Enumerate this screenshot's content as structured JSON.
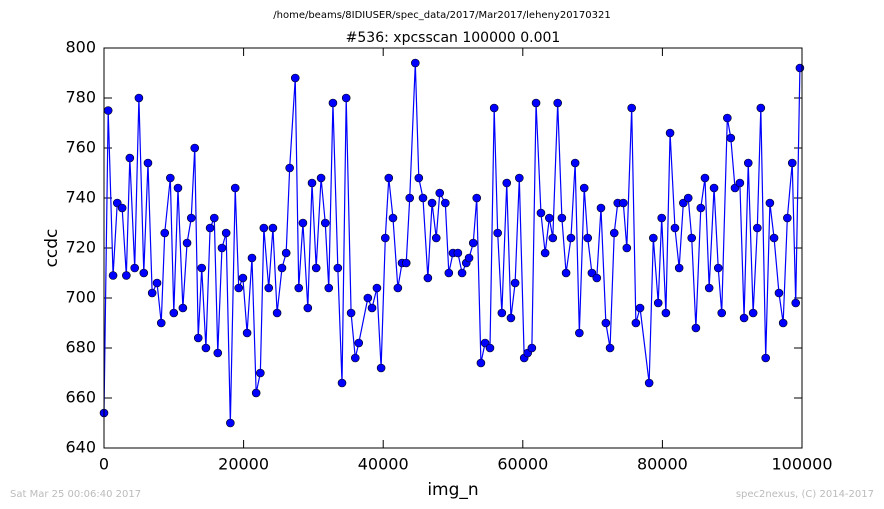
{
  "header": {
    "path": "/home/beams/8IDIUSER/spec_data/2017/Mar2017/leheny20170321"
  },
  "chart_data": {
    "type": "line",
    "title": "#536: xpcsscan 100000 0.001",
    "x_label": "img_n",
    "y_label": "ccdc",
    "color": "#0000ff",
    "marker": true,
    "grid": false,
    "xlim": [
      0,
      100000
    ],
    "xticks": [
      0,
      20000,
      40000,
      60000,
      80000,
      100000
    ],
    "ylim": [
      640,
      800
    ],
    "yticks": [
      640,
      660,
      680,
      700,
      720,
      740,
      760,
      780,
      800
    ],
    "x": [
      0,
      600,
      1300,
      1900,
      2600,
      3200,
      3700,
      4400,
      5000,
      5700,
      6300,
      6900,
      7600,
      8200,
      8700,
      9500,
      10000,
      10600,
      11300,
      11900,
      12500,
      13000,
      13500,
      14000,
      14600,
      15200,
      15800,
      16300,
      16900,
      17500,
      18100,
      18800,
      19300,
      19900,
      20500,
      21200,
      21800,
      22400,
      22900,
      23600,
      24200,
      24800,
      25500,
      26100,
      26600,
      27400,
      27900,
      28500,
      29200,
      29800,
      30400,
      31100,
      31700,
      32200,
      32800,
      33500,
      34100,
      34700,
      35400,
      36000,
      36500,
      37800,
      38400,
      39100,
      39700,
      40300,
      40800,
      41400,
      42100,
      42700,
      43300,
      43800,
      44600,
      45100,
      45700,
      46400,
      47000,
      47600,
      48100,
      48900,
      49400,
      50000,
      50700,
      51300,
      51900,
      52300,
      52900,
      53400,
      54000,
      54600,
      55300,
      55900,
      56400,
      57000,
      57700,
      58300,
      58900,
      59500,
      60200,
      60700,
      61300,
      61900,
      62600,
      63200,
      63800,
      64300,
      65000,
      65600,
      66200,
      66900,
      67500,
      68100,
      68800,
      69300,
      69900,
      70600,
      71200,
      71900,
      72500,
      73100,
      73600,
      74400,
      74900,
      75600,
      76200,
      76800,
      78100,
      78700,
      79400,
      79900,
      80500,
      81100,
      81800,
      82400,
      83000,
      83700,
      84200,
      84800,
      85500,
      86100,
      86700,
      87400,
      88000,
      88500,
      89300,
      89800,
      90400,
      91100,
      91700,
      92300,
      93000,
      93600,
      94100,
      94800,
      95400,
      96000,
      96700,
      97300,
      97900,
      98600,
      99100,
      99700
    ],
    "values": [
      654,
      775,
      709,
      738,
      736,
      709,
      756,
      712,
      780,
      710,
      754,
      702,
      706,
      690,
      726,
      748,
      694,
      744,
      696,
      722,
      732,
      760,
      684,
      712,
      680,
      728,
      732,
      678,
      720,
      726,
      650,
      744,
      704,
      708,
      686,
      716,
      662,
      670,
      728,
      704,
      728,
      694,
      712,
      718,
      752,
      788,
      704,
      730,
      696,
      746,
      712,
      748,
      730,
      704,
      778,
      712,
      666,
      780,
      694,
      676,
      682,
      700,
      696,
      704,
      672,
      724,
      748,
      732,
      704,
      714,
      714,
      740,
      794,
      748,
      740,
      708,
      738,
      724,
      742,
      738,
      710,
      718,
      718,
      710,
      714,
      716,
      722,
      740,
      674,
      682,
      680,
      776,
      726,
      694,
      746,
      692,
      706,
      748,
      676,
      678,
      680,
      778,
      734,
      718,
      732,
      724,
      778,
      732,
      710,
      724,
      754,
      686,
      744,
      724,
      710,
      708,
      736,
      690,
      680,
      726,
      738,
      738,
      720,
      776,
      690,
      696,
      666,
      724,
      698,
      732,
      694,
      766,
      728,
      712,
      738,
      740,
      724,
      688,
      736,
      748,
      704,
      744,
      712,
      694,
      772,
      764,
      744,
      746,
      692,
      754,
      694,
      728,
      776,
      676,
      738,
      724,
      702,
      690,
      732,
      754,
      698,
      792
    ]
  },
  "footer": {
    "left": "Sat Mar 25 00:06:40 2017",
    "right": "spec2nexus, (C) 2014-2017"
  }
}
